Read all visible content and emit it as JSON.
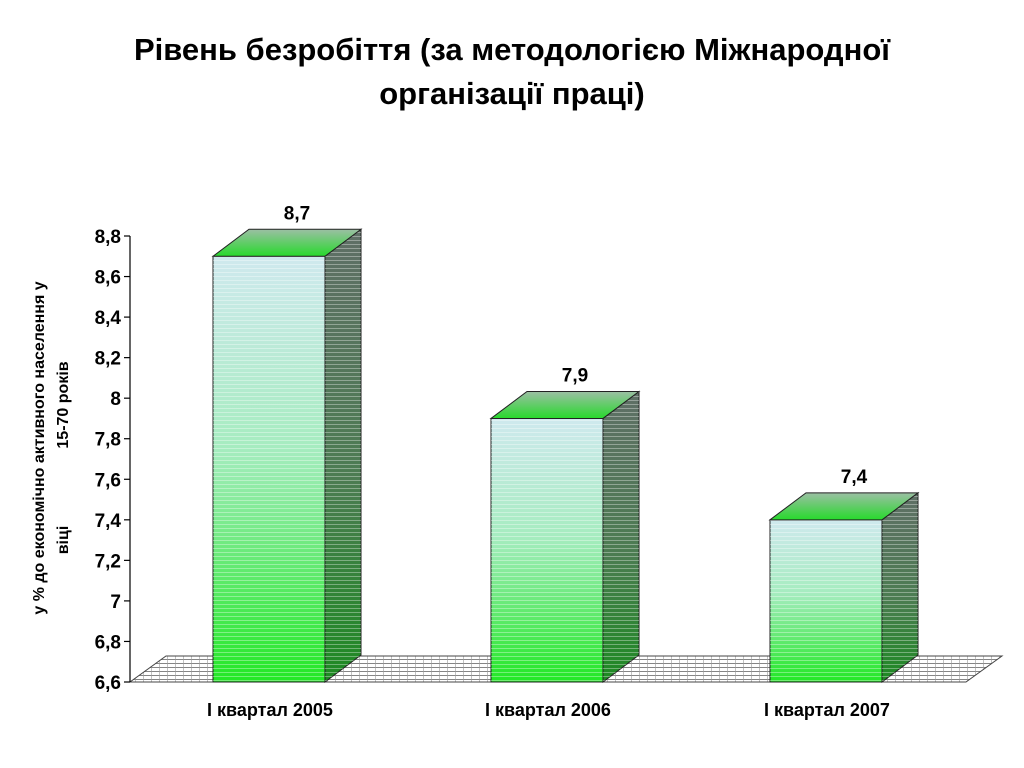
{
  "title": {
    "line1": "Рівень безробіття (за методологією Міжнародної",
    "line2": "організації праці)"
  },
  "chart_data": {
    "type": "bar",
    "style": "3d",
    "title": "Рівень безробіття (за методологією Міжнародної організації праці)",
    "categories": [
      "I квартал 2005",
      "I квартал 2006",
      "I квартал 2007"
    ],
    "values": [
      8.7,
      7.9,
      7.4
    ],
    "data_labels": [
      "8,7",
      "7,9",
      "7,4"
    ],
    "ylabel": {
      "line1": "у % до економічно активного населення у",
      "line2": "віці",
      "line3": "15-70 років"
    },
    "ylim": [
      6.6,
      8.8
    ],
    "y_ticks": [
      "6,6",
      "6,8",
      "7",
      "7,2",
      "7,4",
      "7,6",
      "7,8",
      "8",
      "8,2",
      "8,4",
      "8,6",
      "8,8"
    ],
    "grid": false,
    "legend": false,
    "colors": {
      "bar_front_top": "#cfe9ee",
      "bar_front_bottom": "#22e825",
      "bar_top_face": "#2fcf34",
      "bar_side_face": "#4f6a55",
      "floor_pattern": "#555555"
    }
  }
}
